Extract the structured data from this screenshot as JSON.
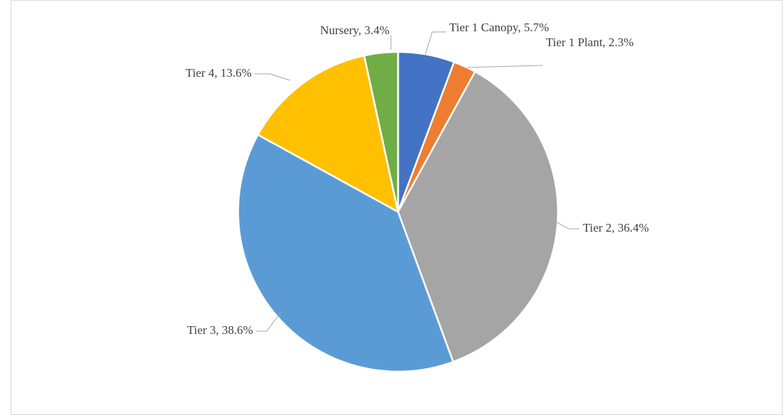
{
  "chart_data": {
    "type": "pie",
    "categories": [
      "Tier 1 Canopy",
      "Tier 1 Plant",
      "Tier 2",
      "Tier 3",
      "Tier 4",
      "Nursery"
    ],
    "values": [
      5.7,
      2.3,
      36.4,
      38.6,
      13.6,
      3.4
    ],
    "value_labels": [
      "Tier 1 Canopy, 5.7%",
      "Tier 1 Plant, 2.3%",
      "Tier 2, 36.4%",
      "Tier 3, 38.6%",
      "Tier 4, 13.6%",
      "Nursery, 3.4%"
    ],
    "colors": [
      "#4472c4",
      "#ed7d31",
      "#a5a5a5",
      "#5b9bd5",
      "#ffc000",
      "#70ad47"
    ]
  }
}
